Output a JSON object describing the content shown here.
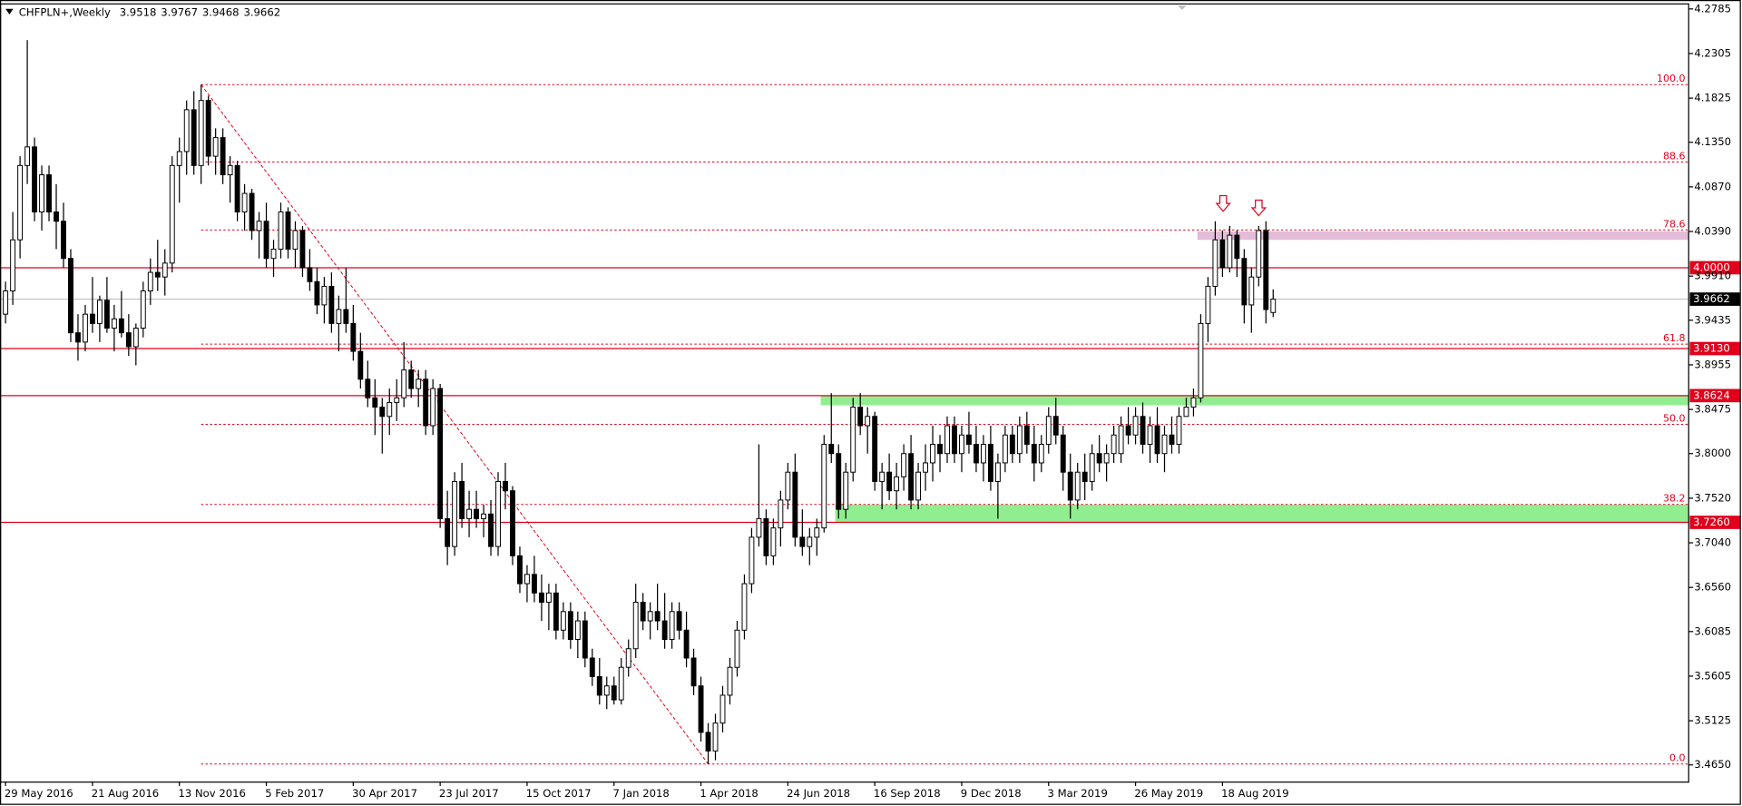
{
  "chart_data": {
    "type": "candlestick",
    "title": "CHFPLN+,Weekly",
    "categories": [
      "29 May 2016",
      null,
      null,
      null,
      null,
      null,
      null,
      null,
      null,
      null,
      null,
      null,
      "21 Aug 2016",
      null,
      null,
      null,
      null,
      null,
      null,
      null,
      null,
      null,
      null,
      null,
      "13 Nov 2016",
      null,
      null,
      null,
      null,
      null,
      null,
      null,
      null,
      null,
      null,
      null,
      "5 Feb 2017",
      null,
      null,
      null,
      null,
      null,
      null,
      null,
      null,
      null,
      null,
      null,
      "30 Apr 2017",
      null,
      null,
      null,
      null,
      null,
      null,
      null,
      null,
      null,
      null,
      null,
      "23 Jul 2017",
      null,
      null,
      null,
      null,
      null,
      null,
      null,
      null,
      null,
      null,
      null,
      "15 Oct 2017",
      null,
      null,
      null,
      null,
      null,
      null,
      null,
      null,
      null,
      null,
      null,
      "7 Jan 2018",
      null,
      null,
      null,
      null,
      null,
      null,
      null,
      null,
      null,
      null,
      null,
      "1 Apr 2018",
      null,
      null,
      null,
      null,
      null,
      null,
      null,
      null,
      null,
      null,
      null,
      "24 Jun 2018",
      null,
      null,
      null,
      null,
      null,
      null,
      null,
      null,
      null,
      null,
      null,
      "16 Sep 2018",
      null,
      null,
      null,
      null,
      null,
      null,
      null,
      null,
      null,
      null,
      null,
      "9 Dec 2018",
      null,
      null,
      null,
      null,
      null,
      null,
      null,
      null,
      null,
      null,
      null,
      "3 Mar 2019",
      null,
      null,
      null,
      null,
      null,
      null,
      null,
      null,
      null,
      null,
      null,
      "26 May 2019",
      null,
      null,
      null,
      null,
      null,
      null,
      null,
      null,
      null,
      null,
      null,
      "18 Aug 2019",
      null,
      null,
      null,
      null,
      null,
      null,
      null
    ],
    "candles": [
      [
        3.95,
        3.985,
        3.94,
        3.975
      ],
      [
        3.975,
        4.06,
        3.96,
        4.03
      ],
      [
        4.03,
        4.12,
        4.01,
        4.11
      ],
      [
        4.11,
        4.245,
        4.09,
        4.13
      ],
      [
        4.13,
        4.14,
        4.05,
        4.06
      ],
      [
        4.06,
        4.11,
        4.04,
        4.1
      ],
      [
        4.1,
        4.11,
        4.05,
        4.06
      ],
      [
        4.06,
        4.09,
        4.02,
        4.05
      ],
      [
        4.05,
        4.07,
        4.0,
        4.01
      ],
      [
        4.01,
        4.02,
        3.92,
        3.93
      ],
      [
        3.93,
        3.95,
        3.9,
        3.92
      ],
      [
        3.92,
        3.96,
        3.91,
        3.95
      ],
      [
        3.95,
        3.99,
        3.93,
        3.94
      ],
      [
        3.94,
        3.97,
        3.92,
        3.965
      ],
      [
        3.965,
        3.99,
        3.93,
        3.935
      ],
      [
        3.935,
        3.96,
        3.91,
        3.945
      ],
      [
        3.945,
        3.975,
        3.925,
        3.93
      ],
      [
        3.93,
        3.95,
        3.905,
        3.915
      ],
      [
        3.915,
        3.94,
        3.895,
        3.935
      ],
      [
        3.935,
        3.985,
        3.925,
        3.975
      ],
      [
        3.975,
        4.01,
        3.96,
        3.995
      ],
      [
        3.995,
        4.03,
        3.975,
        3.99
      ],
      [
        3.99,
        4.02,
        3.97,
        4.005
      ],
      [
        4.005,
        4.12,
        3.995,
        4.11
      ],
      [
        4.11,
        4.14,
        4.07,
        4.125
      ],
      [
        4.125,
        4.18,
        4.1,
        4.17
      ],
      [
        4.17,
        4.19,
        4.1,
        4.11
      ],
      [
        4.11,
        4.197,
        4.09,
        4.18
      ],
      [
        4.18,
        4.185,
        4.11,
        4.12
      ],
      [
        4.12,
        4.15,
        4.1,
        4.14
      ],
      [
        4.14,
        4.15,
        4.09,
        4.1
      ],
      [
        4.1,
        4.12,
        4.07,
        4.11
      ],
      [
        4.11,
        4.115,
        4.05,
        4.06
      ],
      [
        4.06,
        4.09,
        4.04,
        4.08
      ],
      [
        4.08,
        4.085,
        4.03,
        4.04
      ],
      [
        4.04,
        4.06,
        4.01,
        4.05
      ],
      [
        4.05,
        4.07,
        4.0,
        4.01
      ],
      [
        4.01,
        4.03,
        3.99,
        4.02
      ],
      [
        4.02,
        4.07,
        4.01,
        4.06
      ],
      [
        4.06,
        4.065,
        4.01,
        4.02
      ],
      [
        4.02,
        4.05,
        4.0,
        4.04
      ],
      [
        4.04,
        4.045,
        3.99,
        4.0
      ],
      [
        4.0,
        4.02,
        3.975,
        3.985
      ],
      [
        3.985,
        4.0,
        3.95,
        3.96
      ],
      [
        3.96,
        3.99,
        3.94,
        3.98
      ],
      [
        3.98,
        3.995,
        3.93,
        3.94
      ],
      [
        3.94,
        3.97,
        3.91,
        3.955
      ],
      [
        3.955,
        4.0,
        3.93,
        3.94
      ],
      [
        3.94,
        3.96,
        3.9,
        3.91
      ],
      [
        3.91,
        3.93,
        3.87,
        3.88
      ],
      [
        3.88,
        3.9,
        3.85,
        3.86
      ],
      [
        3.86,
        3.88,
        3.82,
        3.85
      ],
      [
        3.85,
        3.86,
        3.8,
        3.84
      ],
      [
        3.84,
        3.87,
        3.82,
        3.855
      ],
      [
        3.855,
        3.88,
        3.835,
        3.86
      ],
      [
        3.86,
        3.92,
        3.85,
        3.89
      ],
      [
        3.89,
        3.9,
        3.86,
        3.87
      ],
      [
        3.87,
        3.89,
        3.85,
        3.88
      ],
      [
        3.88,
        3.89,
        3.82,
        3.83
      ],
      [
        3.83,
        3.88,
        3.82,
        3.87
      ],
      [
        3.87,
        3.875,
        3.72,
        3.73
      ],
      [
        3.73,
        3.76,
        3.68,
        3.7
      ],
      [
        3.7,
        3.78,
        3.69,
        3.77
      ],
      [
        3.77,
        3.79,
        3.72,
        3.73
      ],
      [
        3.73,
        3.76,
        3.71,
        3.74
      ],
      [
        3.74,
        3.76,
        3.72,
        3.73
      ],
      [
        3.73,
        3.745,
        3.71,
        3.735
      ],
      [
        3.735,
        3.75,
        3.69,
        3.7
      ],
      [
        3.7,
        3.78,
        3.69,
        3.77
      ],
      [
        3.77,
        3.79,
        3.74,
        3.76
      ],
      [
        3.76,
        3.765,
        3.68,
        3.69
      ],
      [
        3.69,
        3.7,
        3.65,
        3.66
      ],
      [
        3.66,
        3.68,
        3.64,
        3.67
      ],
      [
        3.67,
        3.69,
        3.64,
        3.65
      ],
      [
        3.65,
        3.67,
        3.62,
        3.64
      ],
      [
        3.64,
        3.66,
        3.61,
        3.65
      ],
      [
        3.65,
        3.66,
        3.6,
        3.61
      ],
      [
        3.61,
        3.64,
        3.6,
        3.63
      ],
      [
        3.63,
        3.64,
        3.59,
        3.6
      ],
      [
        3.6,
        3.63,
        3.58,
        3.62
      ],
      [
        3.62,
        3.63,
        3.57,
        3.58
      ],
      [
        3.58,
        3.59,
        3.55,
        3.56
      ],
      [
        3.56,
        3.58,
        3.53,
        3.54
      ],
      [
        3.54,
        3.56,
        3.525,
        3.55
      ],
      [
        3.55,
        3.56,
        3.53,
        3.535
      ],
      [
        3.535,
        3.58,
        3.53,
        3.57
      ],
      [
        3.57,
        3.6,
        3.56,
        3.59
      ],
      [
        3.59,
        3.66,
        3.58,
        3.64
      ],
      [
        3.64,
        3.65,
        3.61,
        3.62
      ],
      [
        3.62,
        3.64,
        3.6,
        3.63
      ],
      [
        3.63,
        3.66,
        3.61,
        3.62
      ],
      [
        3.62,
        3.65,
        3.59,
        3.6
      ],
      [
        3.6,
        3.64,
        3.59,
        3.63
      ],
      [
        3.63,
        3.64,
        3.6,
        3.61
      ],
      [
        3.61,
        3.63,
        3.57,
        3.58
      ],
      [
        3.58,
        3.59,
        3.54,
        3.55
      ],
      [
        3.55,
        3.56,
        3.49,
        3.5
      ],
      [
        3.5,
        3.51,
        3.466,
        3.48
      ],
      [
        3.48,
        3.52,
        3.47,
        3.51
      ],
      [
        3.51,
        3.55,
        3.5,
        3.54
      ],
      [
        3.54,
        3.58,
        3.53,
        3.57
      ],
      [
        3.57,
        3.62,
        3.56,
        3.61
      ],
      [
        3.61,
        3.67,
        3.6,
        3.66
      ],
      [
        3.66,
        3.72,
        3.65,
        3.71
      ],
      [
        3.71,
        3.81,
        3.7,
        3.73
      ],
      [
        3.73,
        3.74,
        3.68,
        3.69
      ],
      [
        3.69,
        3.73,
        3.68,
        3.72
      ],
      [
        3.72,
        3.76,
        3.7,
        3.75
      ],
      [
        3.75,
        3.79,
        3.74,
        3.78
      ],
      [
        3.78,
        3.8,
        3.7,
        3.71
      ],
      [
        3.71,
        3.74,
        3.69,
        3.7
      ],
      [
        3.7,
        3.72,
        3.68,
        3.71
      ],
      [
        3.71,
        3.73,
        3.69,
        3.72
      ],
      [
        3.72,
        3.82,
        3.715,
        3.81
      ],
      [
        3.81,
        3.865,
        3.79,
        3.8
      ],
      [
        3.8,
        3.81,
        3.73,
        3.74
      ],
      [
        3.74,
        3.79,
        3.73,
        3.78
      ],
      [
        3.78,
        3.86,
        3.77,
        3.85
      ],
      [
        3.85,
        3.865,
        3.82,
        3.83
      ],
      [
        3.83,
        3.85,
        3.8,
        3.84
      ],
      [
        3.84,
        3.845,
        3.76,
        3.77
      ],
      [
        3.77,
        3.79,
        3.74,
        3.78
      ],
      [
        3.78,
        3.8,
        3.75,
        3.76
      ],
      [
        3.76,
        3.79,
        3.74,
        3.775
      ],
      [
        3.775,
        3.81,
        3.76,
        3.8
      ],
      [
        3.8,
        3.82,
        3.74,
        3.75
      ],
      [
        3.75,
        3.79,
        3.74,
        3.78
      ],
      [
        3.78,
        3.81,
        3.76,
        3.79
      ],
      [
        3.79,
        3.83,
        3.77,
        3.81
      ],
      [
        3.81,
        3.82,
        3.78,
        3.8
      ],
      [
        3.8,
        3.84,
        3.79,
        3.83
      ],
      [
        3.83,
        3.84,
        3.79,
        3.8
      ],
      [
        3.8,
        3.83,
        3.78,
        3.82
      ],
      [
        3.82,
        3.845,
        3.8,
        3.81
      ],
      [
        3.81,
        3.83,
        3.78,
        3.79
      ],
      [
        3.79,
        3.82,
        3.77,
        3.81
      ],
      [
        3.81,
        3.83,
        3.76,
        3.77
      ],
      [
        3.77,
        3.8,
        3.73,
        3.79
      ],
      [
        3.79,
        3.83,
        3.78,
        3.82
      ],
      [
        3.82,
        3.83,
        3.79,
        3.8
      ],
      [
        3.8,
        3.84,
        3.79,
        3.83
      ],
      [
        3.83,
        3.845,
        3.8,
        3.81
      ],
      [
        3.81,
        3.83,
        3.77,
        3.79
      ],
      [
        3.79,
        3.82,
        3.78,
        3.81
      ],
      [
        3.81,
        3.85,
        3.8,
        3.84
      ],
      [
        3.84,
        3.86,
        3.81,
        3.82
      ],
      [
        3.82,
        3.83,
        3.76,
        3.78
      ],
      [
        3.78,
        3.8,
        3.73,
        3.75
      ],
      [
        3.75,
        3.79,
        3.74,
        3.78
      ],
      [
        3.78,
        3.8,
        3.75,
        3.77
      ],
      [
        3.77,
        3.81,
        3.76,
        3.8
      ],
      [
        3.8,
        3.82,
        3.78,
        3.79
      ],
      [
        3.79,
        3.81,
        3.77,
        3.8
      ],
      [
        3.8,
        3.83,
        3.79,
        3.82
      ],
      [
        3.8,
        3.84,
        3.79,
        3.83
      ],
      [
        3.83,
        3.85,
        3.81,
        3.82
      ],
      [
        3.82,
        3.85,
        3.81,
        3.84
      ],
      [
        3.84,
        3.855,
        3.8,
        3.81
      ],
      [
        3.81,
        3.84,
        3.79,
        3.83
      ],
      [
        3.83,
        3.85,
        3.79,
        3.8
      ],
      [
        3.8,
        3.83,
        3.78,
        3.82
      ],
      [
        3.82,
        3.84,
        3.8,
        3.81
      ],
      [
        3.81,
        3.85,
        3.8,
        3.84
      ],
      [
        3.84,
        3.86,
        3.84,
        3.85
      ],
      [
        3.85,
        3.87,
        3.84,
        3.86
      ],
      [
        3.86,
        3.95,
        3.855,
        3.94
      ],
      [
        3.94,
        3.99,
        3.92,
        3.98
      ],
      [
        3.98,
        4.05,
        3.97,
        4.03
      ],
      [
        4.03,
        4.04,
        3.99,
        4.0
      ],
      [
        4.0,
        4.045,
        3.995,
        4.035
      ],
      [
        4.035,
        4.04,
        3.99,
        4.01
      ],
      [
        4.01,
        4.02,
        3.94,
        3.96
      ],
      [
        3.96,
        4.0,
        3.93,
        3.99
      ],
      [
        3.99,
        4.045,
        3.98,
        4.04
      ],
      [
        4.04,
        4.05,
        3.94,
        3.955
      ],
      [
        3.9518,
        3.9767,
        3.9468,
        3.9662
      ]
    ],
    "ylim": [
      3.4471,
      4.2833
    ],
    "yticks": [
      4.2785,
      4.2305,
      4.1825,
      {
        "value": 4.135,
        "label": "4.1350"
      },
      {
        "value": 4.087,
        "label": "4.0870"
      },
      {
        "value": 4.039,
        "label": "4.0390"
      },
      {
        "value": 3.991,
        "label": "3.9910"
      },
      3.9435,
      3.8955,
      3.8475,
      {
        "value": 3.8,
        "label": "3.8000"
      },
      {
        "value": 3.752,
        "label": "3.7520"
      },
      {
        "value": 3.704,
        "label": "3.7040"
      },
      {
        "value": 3.656,
        "label": "3.6560"
      },
      3.6085,
      3.5605,
      3.5125,
      {
        "value": 3.465,
        "label": "3.4650"
      }
    ],
    "grid": false,
    "bull_color": "#ffffff",
    "bear_color": "#000000",
    "levels": [
      {
        "value": 4.0,
        "label": "4.0000",
        "color": "#e0001b"
      },
      {
        "value": 3.9662,
        "label": "3.9662",
        "color": "#000000",
        "line": "#c0c0c0"
      },
      {
        "value": 3.913,
        "label": "3.9130",
        "color": "#e0001b"
      },
      {
        "value": 3.8624,
        "label": "3.8624",
        "color": "#e0001b"
      },
      {
        "value": 3.726,
        "label": "3.7260",
        "color": "#e0001b"
      }
    ],
    "zones": [
      {
        "from": 3.852,
        "to": 3.8624,
        "start": 113,
        "color": "#90ee90"
      },
      {
        "from": 3.726,
        "to": 3.745,
        "start": 115,
        "color": "#90ee90"
      },
      {
        "from": 4.03,
        "to": 4.039,
        "start": 165,
        "color": "#e2bcd8"
      }
    ],
    "fibonacci": {
      "start": 27,
      "end": 97,
      "high": 4.197,
      "low": 3.466,
      "color": "#e0001b",
      "levels": [
        {
          "value": 4.197,
          "label": "100.0"
        },
        {
          "value": 4.1137,
          "label": "88.6"
        },
        {
          "value": 4.0406,
          "label": "78.6"
        },
        {
          "value": 3.9178,
          "label": "61.8"
        },
        {
          "value": 3.8315,
          "label": "50.0"
        },
        {
          "value": 3.7453,
          "label": "38.2"
        },
        {
          "value": 3.466,
          "label": "0.0"
        }
      ]
    }
  }
}
